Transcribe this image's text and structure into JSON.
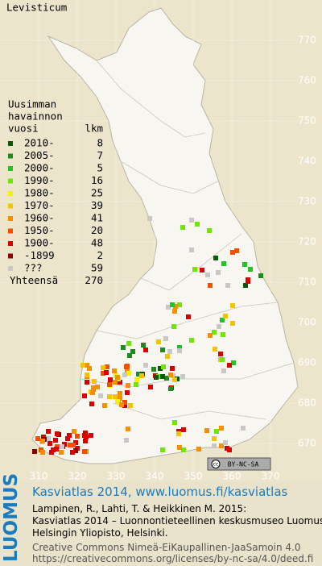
{
  "title": "Levisticum",
  "legend": {
    "heading": [
      "Uusimman",
      "havainnon",
      "vuosi"
    ],
    "count_heading": "lkm",
    "rows": [
      {
        "label": "2010-",
        "count": 8,
        "color": "#0b5a0b"
      },
      {
        "label": "2005-",
        "count": 7,
        "color": "#1f8a1f"
      },
      {
        "label": "2000-",
        "count": 5,
        "color": "#22c422"
      },
      {
        "label": "1990-",
        "count": 16,
        "color": "#6ee600"
      },
      {
        "label": "1980-",
        "count": 25,
        "color": "#f2f200"
      },
      {
        "label": "1970-",
        "count": 39,
        "color": "#f2c400"
      },
      {
        "label": "1960-",
        "count": 41,
        "color": "#f29000"
      },
      {
        "label": "1950-",
        "count": 20,
        "color": "#f05000"
      },
      {
        "label": "1900-",
        "count": 48,
        "color": "#d80000"
      },
      {
        "label": "-1899",
        "count": 2,
        "color": "#8c0000"
      },
      {
        "label": "???",
        "count": 59,
        "color": "#c8c8c8"
      }
    ],
    "total_label": "Yhteensä",
    "total": 270
  },
  "grid": {
    "northing": [
      770,
      760,
      750,
      740,
      730,
      720,
      710,
      700,
      690,
      680,
      670
    ],
    "easting": [
      310,
      320,
      330,
      340,
      350,
      360,
      370
    ]
  },
  "license_badge": "BY-NC-SA",
  "logo": "LUOMUS",
  "footer": {
    "headline": "Kasviatlas 2014, www.luomus.fi/kasviatlas",
    "citation": [
      "Lampinen, R., Lahti, T. & Heikkinen M. 2015:",
      "Kasviatlas 2014 – Luonnontieteellinen keskusmuseo Luomus,",
      "Helsingin Yliopisto, Helsinki."
    ],
    "license": [
      "Creative Commons Nimeä-EiKaupallinen-JaaSamoin 4.0",
      "https://creativecommons.org/licenses/by-nc-sa/4.0/deed.fi"
    ]
  }
}
